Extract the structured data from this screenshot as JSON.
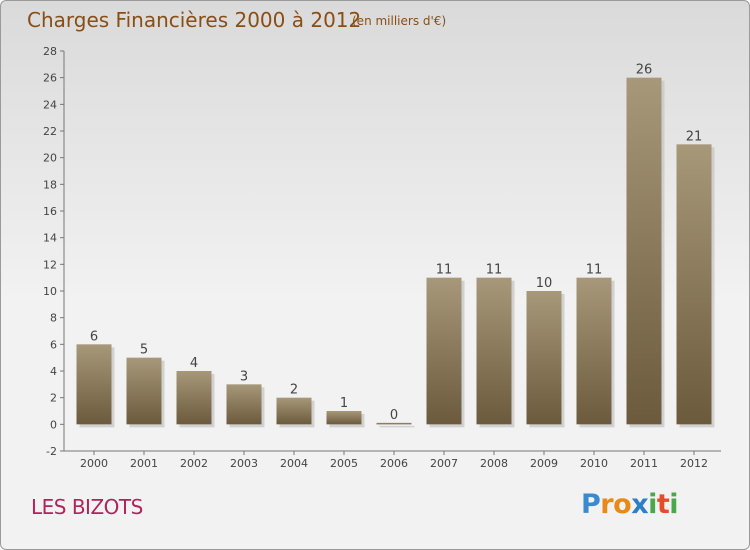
{
  "header": {
    "title": "Charges Financières 2000 à 2012",
    "subtitle": "(en milliers d'€)"
  },
  "footer": {
    "commune": "LES BIZOTS"
  },
  "logo": {
    "text": "Proxiti"
  },
  "colors": {
    "bar": "#8b7a5c",
    "bar_dark": "#6e5c3e",
    "title": "#8a4e14",
    "commune": "#b0245b"
  },
  "chart_data": {
    "type": "bar",
    "title": "Charges Financières 2000 à 2012",
    "subtitle": "(en milliers d'€)",
    "categories": [
      "2000",
      "2001",
      "2002",
      "2003",
      "2004",
      "2005",
      "2006",
      "2007",
      "2008",
      "2009",
      "2010",
      "2011",
      "2012"
    ],
    "values": [
      6,
      5,
      4,
      3,
      2,
      1,
      0,
      11,
      11,
      10,
      11,
      26,
      21
    ],
    "ylim": [
      -2,
      28
    ],
    "yticks": [
      -2,
      0,
      2,
      4,
      6,
      8,
      10,
      12,
      14,
      16,
      18,
      20,
      22,
      24,
      26,
      28
    ],
    "grid": false,
    "legend": "none"
  }
}
